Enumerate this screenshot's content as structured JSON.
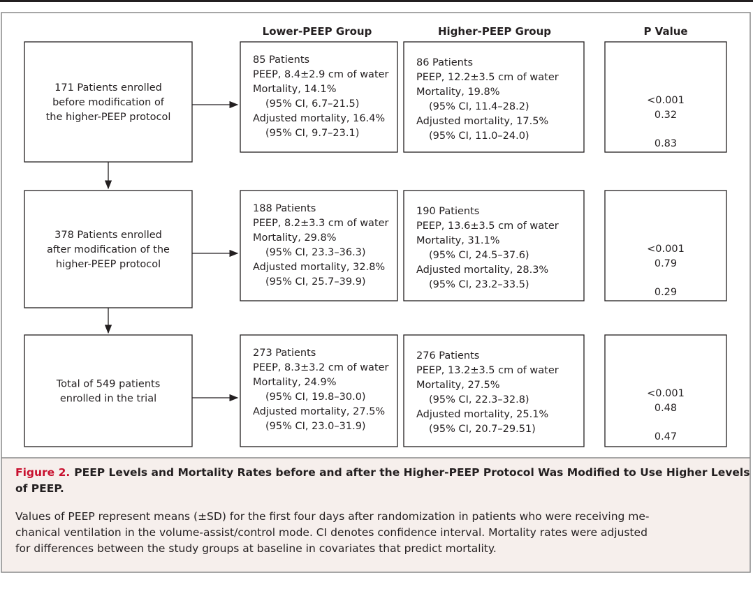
{
  "headers": [
    "Lower-PEEP Group",
    "Higher-PEEP Group",
    "P Value"
  ],
  "rows": [
    {
      "enrollment": [
        "171 Patients enrolled",
        "before modification of",
        "the higher-PEEP protocol"
      ],
      "lower": [
        "85 Patients",
        "PEEP, 8.4±2.9 cm of water",
        "Mortality, 14.1%",
        "(95% CI, 6.7–21.5)",
        "Adjusted mortality, 16.4%",
        "(95% CI, 9.7–23.1)"
      ],
      "higher": [
        "86 Patients",
        "PEEP, 12.2±3.5 cm of water",
        "Mortality, 19.8%",
        "(95% CI, 11.4–28.2)",
        "Adjusted mortality, 17.5%",
        "(95% CI, 11.0–24.0)"
      ],
      "p": [
        "<0.001",
        "0.32",
        "0.83"
      ]
    },
    {
      "enrollment": [
        "378 Patients enrolled",
        "after modification of the",
        "higher-PEEP protocol"
      ],
      "lower": [
        "188 Patients",
        "PEEP, 8.2±3.3 cm of water",
        "Mortality, 29.8%",
        "(95% CI, 23.3–36.3)",
        "Adjusted mortality, 32.8%",
        "(95% CI, 25.7–39.9)"
      ],
      "higher": [
        "190 Patients",
        "PEEP, 13.6±3.5 cm of water",
        "Mortality, 31.1%",
        "(95% CI, 24.5–37.6)",
        "Adjusted mortality, 28.3%",
        "(95% CI, 23.2–33.5)"
      ],
      "p": [
        "<0.001",
        "0.79",
        "0.29"
      ]
    },
    {
      "enrollment": [
        "Total of 549 patients",
        "enrolled in the trial"
      ],
      "lower": [
        "273 Patients",
        "PEEP, 8.3±3.2 cm of water",
        "Mortality, 24.9%",
        "(95% CI, 19.8–30.0)",
        "Adjusted mortality, 27.5%",
        "(95% CI, 23.0–31.9)"
      ],
      "higher": [
        "276 Patients",
        "PEEP, 13.2±3.5 cm of water",
        "Mortality, 27.5%",
        "(95% CI, 22.3–32.8)",
        "Adjusted mortality, 25.1%",
        "(95% CI, 20.7–29.51)"
      ],
      "p": [
        "<0.001",
        "0.48",
        "0.47"
      ]
    }
  ],
  "caption": {
    "label": "Figure 2.",
    "title": [
      "PEEP Levels and Mortality Rates before and after the Higher-PEEP Protocol Was Modified to Use Higher Levels",
      "of PEEP."
    ],
    "text": [
      "Values of PEEP represent means (±SD) for the first four days after randomization in patients who were receiving me-",
      "chanical ventilation in the volume-assist/control mode. CI denotes confidence interval. Mortality rates were adjusted",
      "for differences between the study groups at baseline in covariates that predict mortality."
    ]
  }
}
